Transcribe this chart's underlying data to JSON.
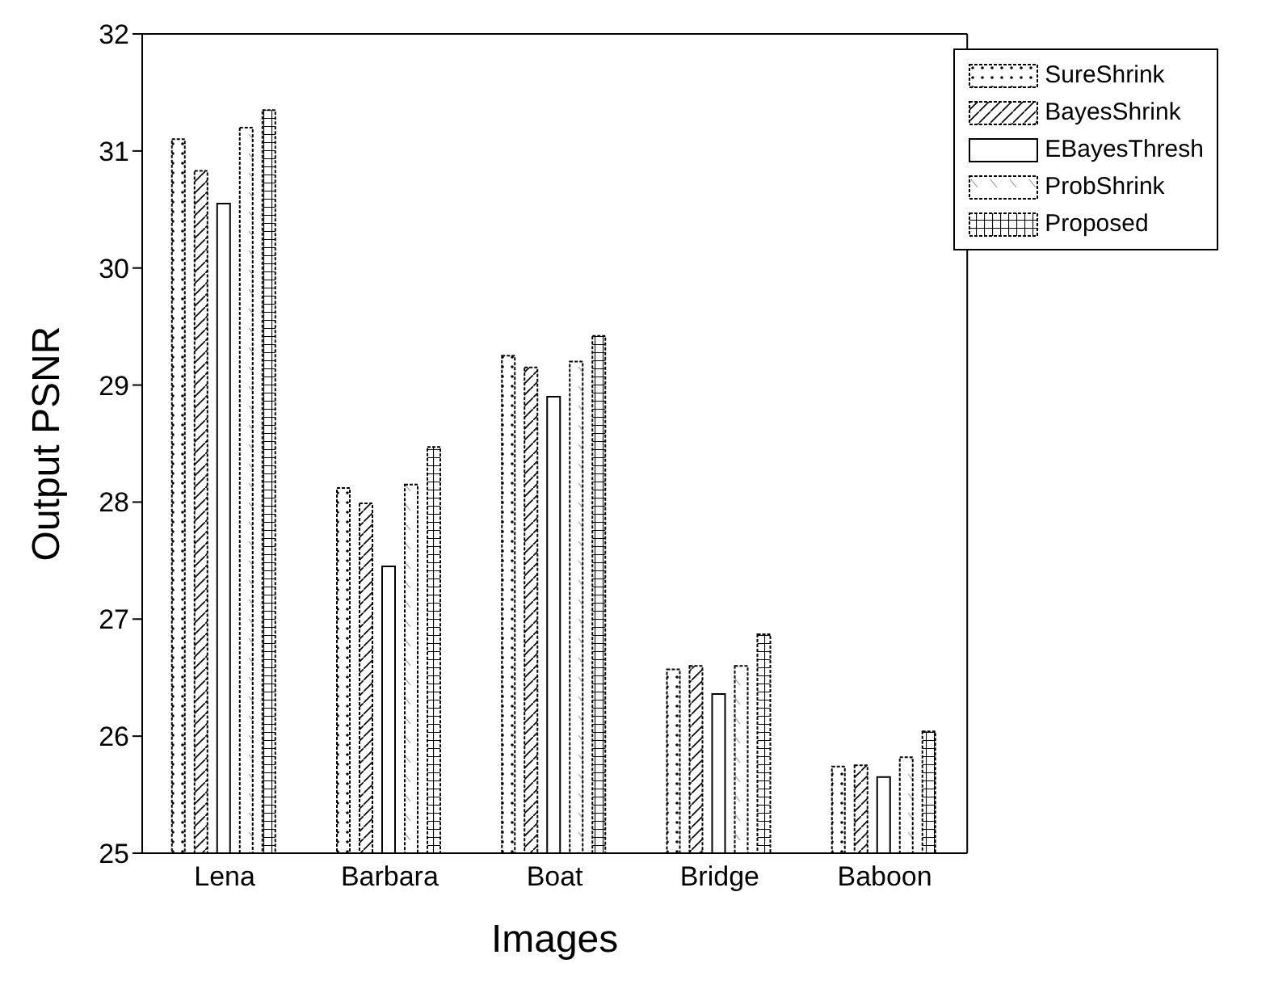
{
  "chart_data": {
    "type": "bar",
    "xlabel": "Images",
    "ylabel": "Output PSNR",
    "categories": [
      "Lena",
      "Barbara",
      "Boat",
      "Bridge",
      "Baboon"
    ],
    "series": [
      {
        "name": "SureShrink",
        "color": "#000000",
        "values": [
          31.1,
          28.12,
          29.25,
          26.57,
          25.74
        ]
      },
      {
        "name": "BayesShrink",
        "color": "#000000",
        "values": [
          30.83,
          27.99,
          29.15,
          26.6,
          25.75
        ]
      },
      {
        "name": "EBayesThresh",
        "color": "#000000",
        "values": [
          30.55,
          27.45,
          28.9,
          26.36,
          25.65
        ]
      },
      {
        "name": "ProbShrink",
        "color": "#000000",
        "values": [
          31.2,
          28.15,
          29.2,
          26.6,
          25.82
        ]
      },
      {
        "name": "Proposed",
        "color": "#000000",
        "values": [
          31.35,
          28.47,
          29.42,
          26.87,
          26.04
        ]
      }
    ],
    "ylim": [
      25,
      32
    ],
    "yticks": [
      25,
      26,
      27,
      28,
      29,
      30,
      31,
      32
    ],
    "grid": false,
    "legend": "top right"
  }
}
